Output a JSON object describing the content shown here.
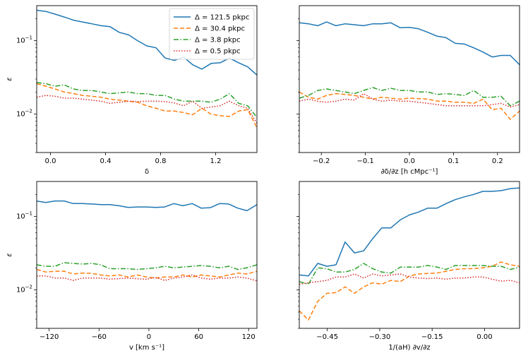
{
  "chart_data": [
    {
      "type": "line",
      "panel": "top-left",
      "xlabel": "δ",
      "ylabel": "ε",
      "xlim": [
        -0.1,
        1.5
      ],
      "ylim": [
        0.003,
        0.3
      ],
      "yscale": "log",
      "xticks": [
        0.0,
        0.4,
        0.8,
        1.2
      ],
      "xtick_labels": [
        "0.0",
        "0.4",
        "0.8",
        "1.2"
      ],
      "show_ylabel": true,
      "show_yticklabels": true,
      "legend": "top-right",
      "x": [
        -0.1,
        -0.033,
        0.033,
        0.1,
        0.167,
        0.233,
        0.3,
        0.367,
        0.433,
        0.5,
        0.567,
        0.633,
        0.7,
        0.767,
        0.833,
        0.9,
        0.967,
        1.033,
        1.1,
        1.167,
        1.233,
        1.3,
        1.367,
        1.433,
        1.5
      ],
      "series": [
        {
          "name": "Δ = 121.5 pkpc",
          "color": "#1f77b4",
          "dash": "solid",
          "values": [
            0.26,
            0.25,
            0.23,
            0.21,
            0.19,
            0.18,
            0.17,
            0.16,
            0.155,
            0.13,
            0.12,
            0.1,
            0.085,
            0.08,
            0.058,
            0.054,
            0.06,
            0.047,
            0.041,
            0.049,
            0.05,
            0.058,
            0.05,
            0.044,
            0.034
          ]
        },
        {
          "name": "Δ = 30.4 pkpc",
          "color": "#ff7f0e",
          "dash": "dashed",
          "values": [
            0.026,
            0.024,
            0.022,
            0.02,
            0.019,
            0.018,
            0.0175,
            0.017,
            0.016,
            0.0155,
            0.015,
            0.0145,
            0.013,
            0.012,
            0.011,
            0.011,
            0.0105,
            0.0098,
            0.012,
            0.01,
            0.0095,
            0.0093,
            0.011,
            0.0115,
            0.0065
          ]
        },
        {
          "name": "Δ = 3.8 pkpc",
          "color": "#2ca02c",
          "dash": "dashdot",
          "values": [
            0.027,
            0.026,
            0.024,
            0.025,
            0.022,
            0.021,
            0.021,
            0.02,
            0.019,
            0.0195,
            0.02,
            0.019,
            0.019,
            0.018,
            0.018,
            0.016,
            0.015,
            0.015,
            0.015,
            0.0145,
            0.016,
            0.019,
            0.014,
            0.013,
            0.009
          ]
        },
        {
          "name": "Δ = 0.5 pkpc",
          "color": "#d62728",
          "dash": "dotted",
          "values": [
            0.017,
            0.018,
            0.0175,
            0.0165,
            0.0165,
            0.016,
            0.0155,
            0.015,
            0.014,
            0.0145,
            0.015,
            0.0148,
            0.015,
            0.015,
            0.0148,
            0.0142,
            0.013,
            0.015,
            0.012,
            0.0125,
            0.013,
            0.015,
            0.013,
            0.012,
            0.0075
          ]
        }
      ]
    },
    {
      "type": "line",
      "panel": "top-right",
      "xlabel": "∂δ/∂z [h cMpc⁻¹]",
      "ylabel": "",
      "xlim": [
        -0.25,
        0.25
      ],
      "ylim": [
        0.003,
        0.3
      ],
      "yscale": "log",
      "xticks": [
        -0.2,
        -0.1,
        0.0,
        0.1,
        0.2
      ],
      "xtick_labels": [
        "−0.2",
        "−0.1",
        "0.0",
        "0.1",
        "0.2"
      ],
      "show_ylabel": false,
      "show_yticklabels": false,
      "x": [
        -0.25,
        -0.229,
        -0.208,
        -0.188,
        -0.167,
        -0.146,
        -0.125,
        -0.104,
        -0.083,
        -0.063,
        -0.042,
        -0.021,
        0.0,
        0.021,
        0.042,
        0.063,
        0.083,
        0.104,
        0.125,
        0.146,
        0.167,
        0.188,
        0.208,
        0.229,
        0.25
      ],
      "series": [
        {
          "name": "Δ = 121.5 pkpc",
          "color": "#1f77b4",
          "dash": "solid",
          "values": [
            0.175,
            0.17,
            0.16,
            0.18,
            0.16,
            0.17,
            0.165,
            0.16,
            0.17,
            0.17,
            0.175,
            0.15,
            0.152,
            0.145,
            0.13,
            0.115,
            0.11,
            0.092,
            0.09,
            0.08,
            0.07,
            0.06,
            0.063,
            0.063,
            0.047
          ]
        },
        {
          "name": "Δ = 30.4 pkpc",
          "color": "#ff7f0e",
          "dash": "dashed",
          "values": [
            0.02,
            0.017,
            0.016,
            0.018,
            0.019,
            0.0185,
            0.018,
            0.017,
            0.016,
            0.017,
            0.0165,
            0.016,
            0.0165,
            0.0163,
            0.016,
            0.015,
            0.015,
            0.0145,
            0.0145,
            0.014,
            0.016,
            0.0115,
            0.012,
            0.0085,
            0.011
          ]
        },
        {
          "name": "Δ = 3.8 pkpc",
          "color": "#2ca02c",
          "dash": "dashdot",
          "values": [
            0.0165,
            0.018,
            0.021,
            0.022,
            0.021,
            0.02,
            0.019,
            0.021,
            0.023,
            0.021,
            0.0225,
            0.021,
            0.021,
            0.02,
            0.02,
            0.0185,
            0.019,
            0.0185,
            0.018,
            0.021,
            0.017,
            0.017,
            0.0175,
            0.013,
            0.015
          ]
        },
        {
          "name": "Δ = 0.5 pkpc",
          "color": "#d62728",
          "dash": "dotted",
          "values": [
            0.015,
            0.016,
            0.015,
            0.0145,
            0.015,
            0.016,
            0.0155,
            0.019,
            0.016,
            0.015,
            0.0155,
            0.015,
            0.015,
            0.0145,
            0.014,
            0.0135,
            0.013,
            0.013,
            0.013,
            0.013,
            0.013,
            0.0135,
            0.014,
            0.0125,
            0.0135
          ]
        }
      ]
    },
    {
      "type": "line",
      "panel": "bottom-left",
      "xlabel": "v [km s⁻¹]",
      "ylabel": "ε",
      "xlim": [
        -135,
        130
      ],
      "ylim": [
        0.003,
        0.3
      ],
      "yscale": "log",
      "xticks": [
        -120,
        -60,
        0,
        60,
        120
      ],
      "xtick_labels": [
        "−120",
        "−60",
        "0",
        "60",
        "120"
      ],
      "show_ylabel": true,
      "show_yticklabels": true,
      "x": [
        -135,
        -124,
        -113,
        -102,
        -91,
        -80,
        -69,
        -58,
        -47,
        -36,
        -25,
        -14,
        -3,
        8,
        19,
        30,
        41,
        52,
        63,
        74,
        85,
        96,
        107,
        118,
        130
      ],
      "series": [
        {
          "name": "Δ = 121.5 pkpc",
          "color": "#1f77b4",
          "dash": "solid",
          "values": [
            0.162,
            0.155,
            0.163,
            0.163,
            0.15,
            0.15,
            0.148,
            0.145,
            0.145,
            0.14,
            0.133,
            0.135,
            0.135,
            0.133,
            0.135,
            0.15,
            0.14,
            0.15,
            0.13,
            0.132,
            0.15,
            0.148,
            0.13,
            0.12,
            0.145
          ]
        },
        {
          "name": "Δ = 30.4 pkpc",
          "color": "#ff7f0e",
          "dash": "dashed",
          "values": [
            0.019,
            0.0175,
            0.018,
            0.018,
            0.0165,
            0.017,
            0.0168,
            0.016,
            0.0155,
            0.016,
            0.015,
            0.016,
            0.015,
            0.0145,
            0.015,
            0.015,
            0.016,
            0.015,
            0.016,
            0.0155,
            0.015,
            0.016,
            0.017,
            0.0165,
            0.018
          ]
        },
        {
          "name": "Δ = 3.8 pkpc",
          "color": "#2ca02c",
          "dash": "dashdot",
          "values": [
            0.022,
            0.021,
            0.021,
            0.0235,
            0.023,
            0.0225,
            0.023,
            0.022,
            0.0195,
            0.0195,
            0.0195,
            0.019,
            0.0195,
            0.02,
            0.021,
            0.02,
            0.0205,
            0.021,
            0.0215,
            0.021,
            0.02,
            0.021,
            0.019,
            0.02,
            0.022
          ]
        },
        {
          "name": "Δ = 0.5 pkpc",
          "color": "#d62728",
          "dash": "dotted",
          "values": [
            0.0155,
            0.0155,
            0.0145,
            0.0145,
            0.0135,
            0.0145,
            0.0145,
            0.0145,
            0.014,
            0.0143,
            0.0145,
            0.0142,
            0.014,
            0.0148,
            0.0135,
            0.0145,
            0.015,
            0.016,
            0.0145,
            0.014,
            0.0145,
            0.0145,
            0.015,
            0.0145,
            0.0133
          ]
        }
      ]
    },
    {
      "type": "line",
      "panel": "bottom-right",
      "xlabel": "1/(aH) ∂v/∂z",
      "ylabel": "",
      "xlim": [
        -0.53,
        0.1
      ],
      "ylim": [
        0.003,
        0.3
      ],
      "yscale": "log",
      "xticks": [
        -0.45,
        -0.3,
        -0.15,
        0.0
      ],
      "xtick_labels": [
        "−0.45",
        "−0.30",
        "−0.15",
        "0.00"
      ],
      "show_ylabel": false,
      "show_yticklabels": false,
      "x": [
        -0.53,
        -0.504,
        -0.477,
        -0.451,
        -0.425,
        -0.399,
        -0.372,
        -0.346,
        -0.32,
        -0.294,
        -0.268,
        -0.241,
        -0.215,
        -0.189,
        -0.163,
        -0.136,
        -0.11,
        -0.084,
        -0.058,
        -0.031,
        -0.005,
        0.021,
        0.047,
        0.074,
        0.1
      ],
      "series": [
        {
          "name": "Δ = 121.5 pkpc",
          "color": "#1f77b4",
          "dash": "solid",
          "values": [
            0.016,
            0.0155,
            0.023,
            0.021,
            0.022,
            0.045,
            0.032,
            0.034,
            0.05,
            0.07,
            0.07,
            0.09,
            0.105,
            0.115,
            0.13,
            0.13,
            0.15,
            0.17,
            0.185,
            0.2,
            0.22,
            0.22,
            0.225,
            0.24,
            0.245
          ]
        },
        {
          "name": "Δ = 30.4 pkpc",
          "color": "#ff7f0e",
          "dash": "dashed",
          "values": [
            0.0052,
            0.0039,
            0.007,
            0.009,
            0.0092,
            0.011,
            0.009,
            0.011,
            0.0125,
            0.012,
            0.0135,
            0.013,
            0.0155,
            0.0165,
            0.0168,
            0.017,
            0.018,
            0.019,
            0.0195,
            0.0195,
            0.02,
            0.021,
            0.024,
            0.022,
            0.021
          ]
        },
        {
          "name": "Δ = 3.8 pkpc",
          "color": "#2ca02c",
          "dash": "dashdot",
          "values": [
            0.013,
            0.012,
            0.02,
            0.0195,
            0.0175,
            0.0175,
            0.019,
            0.023,
            0.0195,
            0.0175,
            0.017,
            0.0205,
            0.0205,
            0.0205,
            0.0215,
            0.0205,
            0.019,
            0.0215,
            0.0215,
            0.0215,
            0.0215,
            0.021,
            0.021,
            0.019,
            0.0205
          ]
        },
        {
          "name": "Δ = 0.5 pkpc",
          "color": "#d62728",
          "dash": "dotted",
          "values": [
            0.012,
            0.0125,
            0.013,
            0.0135,
            0.015,
            0.015,
            0.0165,
            0.0145,
            0.0165,
            0.0155,
            0.016,
            0.0165,
            0.015,
            0.0145,
            0.0143,
            0.0145,
            0.014,
            0.0145,
            0.0145,
            0.015,
            0.015,
            0.014,
            0.0132,
            0.0135,
            0.0125
          ]
        }
      ]
    }
  ]
}
